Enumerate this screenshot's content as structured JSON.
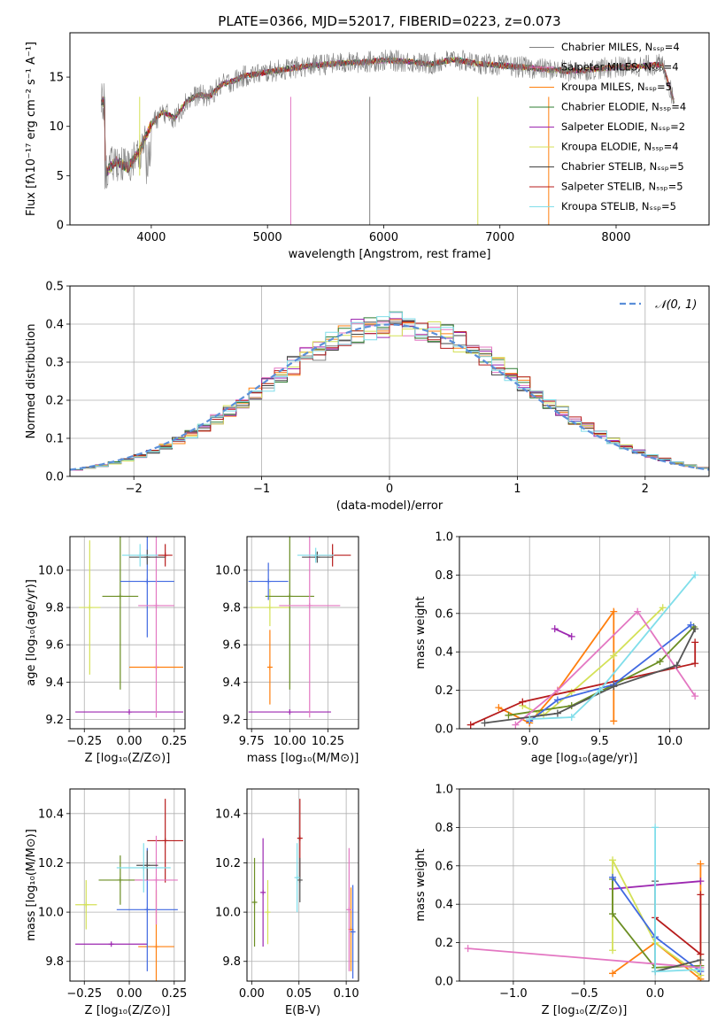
{
  "figure": {
    "title": "PLATE=0366, MJD=52017, FIBERID=0223, z=0.073"
  },
  "series_names": [
    "Chabrier MILES, Nₛₛₚ=4",
    "Salpeter MILES, Nₛₛₚ=4",
    "Kroupa MILES, Nₛₛₚ=5",
    "Chabrier ELODIE, Nₛₛₚ=4",
    "Salpeter ELODIE, Nₛₛₚ=2",
    "Kroupa ELODIE, Nₛₛₚ=4",
    "Chabrier STELIB, Nₛₛₚ=5",
    "Salpeter STELIB, Nₛₛₚ=5",
    "Kroupa STELIB, Nₛₛₚ=5"
  ],
  "series_colors": [
    "#808080",
    "#e377c2",
    "#ff7f0e",
    "#2e7d32",
    "#9c27b0",
    "#d4e157",
    "#424242",
    "#b71c1c",
    "#80deea"
  ],
  "model_colors": [
    "#ff7f0e",
    "#9c27b0",
    "#d4e157",
    "#b71c1c",
    "#6b8e23",
    "#4169e1",
    "#e377c2",
    "#555555",
    "#80deea"
  ],
  "chart_data": [
    {
      "panel": "spectrum",
      "type": "line",
      "xlabel": "wavelength [Angstrom, rest frame]",
      "ylabel": "Flux [fλ10⁻¹⁷ erg cm⁻² s⁻¹ A⁻¹]",
      "xlim": [
        3300,
        8800
      ],
      "ylim": [
        0,
        19.5
      ],
      "xticks": [
        4000,
        5000,
        6000,
        7000,
        8000
      ],
      "yticks": [
        0,
        5,
        10,
        15
      ],
      "grid": false,
      "legend_position": "right",
      "spectrum_x": [
        3600,
        3700,
        3800,
        3900,
        4000,
        4100,
        4200,
        4300,
        4400,
        4500,
        4600,
        4700,
        4800,
        4900,
        5000,
        5200,
        5400,
        5600,
        5800,
        6000,
        6200,
        6400,
        6600,
        6800,
        7000,
        7200,
        7400,
        7600,
        7800,
        8000,
        8200,
        8400,
        8500
      ],
      "spectrum_y": [
        5.2,
        6.5,
        5.8,
        7.5,
        10.2,
        11.5,
        10.8,
        12.5,
        13.2,
        13.0,
        14.2,
        14.6,
        15.1,
        15.3,
        15.5,
        15.9,
        16.2,
        16.4,
        16.5,
        16.7,
        16.6,
        16.3,
        16.8,
        16.4,
        16.2,
        16.0,
        15.8,
        15.6,
        15.8,
        16.0,
        16.1,
        16.3,
        12.5
      ]
    },
    {
      "panel": "residual_histogram",
      "type": "line",
      "xlabel": "(data-model)/error",
      "ylabel": "Normed distribution",
      "xlim": [
        -2.5,
        2.5
      ],
      "ylim": [
        0,
        0.5
      ],
      "xticks": [
        -2,
        -1,
        0,
        1,
        2
      ],
      "xtick_labels": [
        "−2",
        "−1",
        "0",
        "1",
        "2"
      ],
      "yticks": [
        0,
        0.1,
        0.2,
        0.3,
        0.4,
        0.5
      ],
      "grid": true,
      "legend": "𝒩(0, 1)",
      "bin_width": 0.1
    },
    {
      "panel": "age_vs_Z",
      "type": "scatter",
      "xlabel": "Z [log₁₀(Z/Z⊙)]",
      "ylabel": "age  [log₁₀(age/yr)]",
      "xlim": [
        -0.33,
        0.31
      ],
      "ylim": [
        9.15,
        10.18
      ],
      "xticks": [
        -0.25,
        0.0,
        0.25
      ],
      "xtick_labels": [
        "−0.25",
        "0.00",
        "0.25"
      ],
      "yticks": [
        9.2,
        9.4,
        9.6,
        9.8,
        10.0
      ],
      "grid": true,
      "points": [
        {
          "x": 0.15,
          "xerr": 0.15,
          "y": 9.48,
          "yerr": 0.0
        },
        {
          "x": 0.0,
          "xerr": 0.3,
          "y": 9.24,
          "yerr": 0.0
        },
        {
          "x": -0.22,
          "xerr": 0.06,
          "y": 9.8,
          "yerr": 0.36
        },
        {
          "x": 0.2,
          "xerr": 0.04,
          "y": 10.08,
          "yerr": 0.06
        },
        {
          "x": -0.05,
          "xerr": 0.1,
          "y": 9.86,
          "yerr": 0.5
        },
        {
          "x": 0.1,
          "xerr": 0.15,
          "y": 9.94,
          "yerr": 0.3
        },
        {
          "x": 0.15,
          "xerr": 0.1,
          "y": 9.81,
          "yerr": 0.6
        },
        {
          "x": 0.1,
          "xerr": 0.1,
          "y": 10.07,
          "yerr": 0.04
        },
        {
          "x": 0.06,
          "xerr": 0.1,
          "y": 10.08,
          "yerr": 0.06
        }
      ]
    },
    {
      "panel": "age_vs_mass",
      "type": "scatter",
      "xlabel": "mass [log₁₀(M/M⊙)]",
      "xlim": [
        9.72,
        10.45
      ],
      "ylim": [
        9.15,
        10.18
      ],
      "xticks": [
        9.75,
        10.0,
        10.25
      ],
      "xtick_labels": [
        "9.75",
        "10.00",
        "10.25"
      ],
      "yticks": [
        9.2,
        9.4,
        9.6,
        9.8,
        10.0
      ],
      "grid": true,
      "points": [
        {
          "x": 9.87,
          "xerr": 0.0,
          "y": 9.48,
          "yerr": 0.2
        },
        {
          "x": 10.0,
          "xerr": 0.27,
          "y": 9.24,
          "yerr": 0.0
        },
        {
          "x": 9.87,
          "xerr": 0.13,
          "y": 9.8,
          "yerr": 0.1
        },
        {
          "x": 10.28,
          "xerr": 0.12,
          "y": 10.08,
          "yerr": 0.06
        },
        {
          "x": 10.0,
          "xerr": 0.16,
          "y": 9.86,
          "yerr": 0.5
        },
        {
          "x": 9.86,
          "xerr": 0.13,
          "y": 9.94,
          "yerr": 0.1
        },
        {
          "x": 10.13,
          "xerr": 0.2,
          "y": 9.81,
          "yerr": 0.6
        },
        {
          "x": 10.18,
          "xerr": 0.1,
          "y": 10.07,
          "yerr": 0.03
        },
        {
          "x": 10.17,
          "xerr": 0.12,
          "y": 10.08,
          "yerr": 0.04
        }
      ]
    },
    {
      "panel": "weight_vs_age",
      "type": "line",
      "xlabel": "age  [log₁₀(age/yr)]",
      "ylabel": "mass weight",
      "xlim": [
        8.5,
        10.28
      ],
      "ylim": [
        0,
        1.0
      ],
      "xticks": [
        9.0,
        9.5,
        10.0
      ],
      "xtick_labels": [
        "9.0",
        "9.5",
        "10.0"
      ],
      "yticks": [
        0,
        0.2,
        0.4,
        0.6,
        0.8,
        1.0
      ],
      "ytick_labels": [
        "0.0",
        "0.2",
        "0.4",
        "0.6",
        "0.8",
        "1.0"
      ],
      "grid": true,
      "series": [
        {
          "x": [
            8.78,
            9.0,
            9.2,
            9.6,
            9.6,
            9.6
          ],
          "y": [
            0.11,
            0.03,
            0.2,
            0.61,
            0.23,
            0.04
          ]
        },
        {
          "x": [
            9.18,
            9.3
          ],
          "y": [
            0.52,
            0.48
          ]
        },
        {
          "x": [
            8.95,
            9.1,
            9.3,
            9.6,
            9.95
          ],
          "y": [
            0.12,
            0.07,
            0.19,
            0.38,
            0.63
          ]
        },
        {
          "x": [
            8.58,
            8.95,
            10.18,
            10.18
          ],
          "y": [
            0.02,
            0.14,
            0.34,
            0.45
          ]
        },
        {
          "x": [
            8.85,
            9.3,
            9.93,
            10.17
          ],
          "y": [
            0.07,
            0.12,
            0.35,
            0.53
          ]
        },
        {
          "x": [
            9.0,
            9.2,
            9.6,
            10.15
          ],
          "y": [
            0.04,
            0.15,
            0.23,
            0.54
          ]
        },
        {
          "x": [
            8.9,
            9.2,
            9.77,
            10.18
          ],
          "y": [
            0.02,
            0.2,
            0.61,
            0.17
          ]
        },
        {
          "x": [
            8.68,
            9.2,
            9.6,
            10.05,
            10.18
          ],
          "y": [
            0.03,
            0.08,
            0.22,
            0.33,
            0.52
          ]
        },
        {
          "x": [
            9.0,
            9.3,
            9.5,
            10.18
          ],
          "y": [
            0.05,
            0.06,
            0.2,
            0.8
          ]
        }
      ]
    },
    {
      "panel": "mass_vs_Z",
      "type": "scatter",
      "xlabel": "Z [log₁₀(Z/Z⊙)]",
      "ylabel": "mass [log₁₀(M/M⊙)]",
      "xlim": [
        -0.33,
        0.31
      ],
      "ylim": [
        9.72,
        10.5
      ],
      "xticks": [
        -0.25,
        0.0,
        0.25
      ],
      "xtick_labels": [
        "−0.25",
        "0.00",
        "0.25"
      ],
      "yticks": [
        9.8,
        10.0,
        10.2,
        10.4
      ],
      "grid": true,
      "points": [
        {
          "x": 0.15,
          "xerr": 0.1,
          "y": 9.86,
          "yerr": 0.23
        },
        {
          "x": -0.1,
          "xerr": 0.2,
          "y": 9.87,
          "yerr": 0.0
        },
        {
          "x": -0.24,
          "xerr": 0.06,
          "y": 10.03,
          "yerr": 0.1
        },
        {
          "x": 0.2,
          "xerr": 0.1,
          "y": 10.29,
          "yerr": 0.17
        },
        {
          "x": -0.05,
          "xerr": 0.12,
          "y": 10.13,
          "yerr": 0.1
        },
        {
          "x": 0.1,
          "xerr": 0.17,
          "y": 10.01,
          "yerr": 0.25
        },
        {
          "x": 0.15,
          "xerr": 0.12,
          "y": 10.13,
          "yerr": 0.18
        },
        {
          "x": 0.1,
          "xerr": 0.06,
          "y": 10.19,
          "yerr": 0.06
        },
        {
          "x": 0.08,
          "xerr": 0.15,
          "y": 10.18,
          "yerr": 0.1
        }
      ]
    },
    {
      "panel": "mass_vs_EBV",
      "type": "scatter",
      "xlabel": "E(B-V)",
      "xlim": [
        -0.005,
        0.113
      ],
      "ylim": [
        9.72,
        10.5
      ],
      "xticks": [
        0.0,
        0.05,
        0.1
      ],
      "xtick_labels": [
        "0.00",
        "0.05",
        "0.10"
      ],
      "yticks": [
        9.8,
        10.0,
        10.2,
        10.4
      ],
      "grid": true,
      "points": [
        {
          "x": 0.105,
          "y": 9.93,
          "yerr": 0.17
        },
        {
          "x": 0.012,
          "y": 10.08,
          "yerr": 0.22
        },
        {
          "x": 0.017,
          "y": 10.0,
          "yerr": 0.13
        },
        {
          "x": 0.051,
          "y": 10.3,
          "yerr": 0.16
        },
        {
          "x": 0.003,
          "y": 10.04,
          "yerr": 0.18
        },
        {
          "x": 0.107,
          "y": 9.92,
          "yerr": 0.19
        },
        {
          "x": 0.103,
          "y": 10.01,
          "yerr": 0.25
        },
        {
          "x": 0.051,
          "y": 10.13,
          "yerr": 0.09
        },
        {
          "x": 0.048,
          "y": 10.14,
          "yerr": 0.14
        }
      ]
    },
    {
      "panel": "weight_vs_Z",
      "type": "line",
      "xlabel": "Z [log₁₀(Z/Z⊙)]",
      "ylabel": "mass weight",
      "xlim": [
        -1.38,
        0.38
      ],
      "ylim": [
        0,
        1.0
      ],
      "xticks": [
        -1.0,
        -0.5,
        0.0
      ],
      "xtick_labels": [
        "−1.0",
        "−0.5",
        "0.0"
      ],
      "yticks": [
        0,
        0.2,
        0.4,
        0.6,
        0.8,
        1.0
      ],
      "ytick_labels": [
        "0.0",
        "0.2",
        "0.4",
        "0.6",
        "0.8",
        "1.0"
      ],
      "grid": true,
      "series": [
        {
          "x": [
            -0.3,
            0.0,
            0.32,
            0.32
          ],
          "y": [
            0.04,
            0.2,
            0.01,
            0.61
          ]
        },
        {
          "x": [
            -0.3,
            0.0,
            0.32
          ],
          "y": [
            0.48,
            0.5,
            0.52
          ]
        },
        {
          "x": [
            -0.3,
            -0.3,
            0.0,
            0.32
          ],
          "y": [
            0.16,
            0.63,
            0.2,
            0.03
          ]
        },
        {
          "x": [
            0.0,
            0.32,
            0.32
          ],
          "y": [
            0.33,
            0.14,
            0.45
          ]
        },
        {
          "x": [
            -0.3,
            -0.3,
            0.0,
            0.32
          ],
          "y": [
            0.53,
            0.35,
            0.07,
            0.08
          ]
        },
        {
          "x": [
            -0.3,
            0.0,
            0.32
          ],
          "y": [
            0.54,
            0.23,
            0.05
          ]
        },
        {
          "x": [
            -1.32,
            0.32
          ],
          "y": [
            0.17,
            0.07
          ]
        },
        {
          "x": [
            0.0,
            0.0,
            0.32
          ],
          "y": [
            0.52,
            0.05,
            0.11
          ]
        },
        {
          "x": [
            0.0,
            0.0,
            0.32
          ],
          "y": [
            0.8,
            0.05,
            0.06
          ]
        }
      ]
    }
  ]
}
